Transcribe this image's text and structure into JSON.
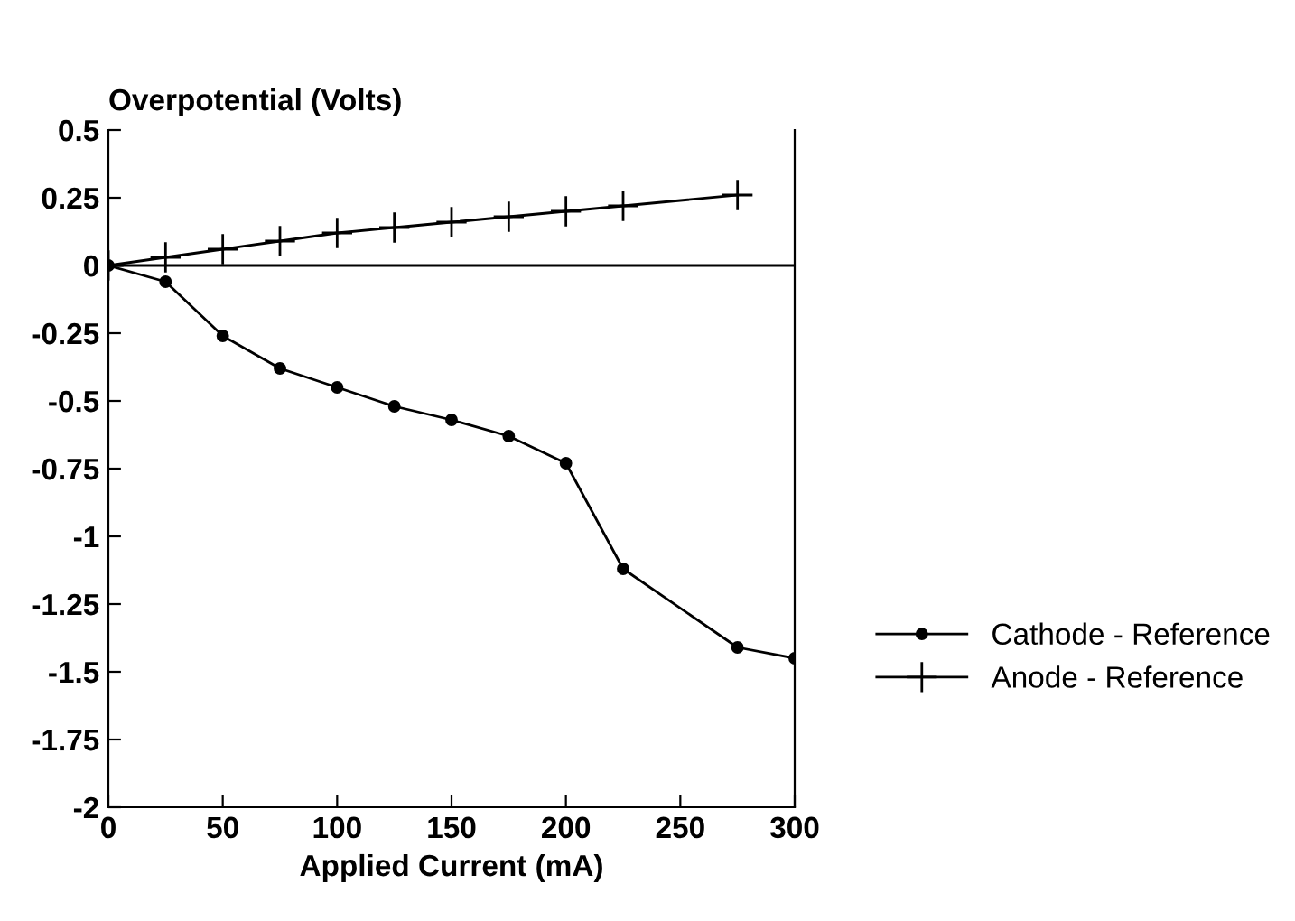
{
  "chart_data": {
    "type": "line",
    "xlabel": "Applied Current (mA)",
    "ylabel": "Overpotential (Volts)",
    "series": [
      {
        "name": "Cathode - Reference",
        "color": "#000000",
        "marker": "circle",
        "x": [
          0,
          25,
          50,
          75,
          100,
          125,
          150,
          175,
          200,
          225,
          275,
          300
        ],
        "values": [
          0,
          -0.06,
          -0.26,
          -0.38,
          -0.45,
          -0.52,
          -0.57,
          -0.63,
          -0.73,
          -1.12,
          -1.41,
          -1.45
        ]
      },
      {
        "name": "Anode - Reference",
        "color": "#000000",
        "marker": "cross",
        "x": [
          0,
          25,
          50,
          75,
          100,
          125,
          150,
          175,
          200,
          225,
          275
        ],
        "values": [
          0,
          0.03,
          0.06,
          0.09,
          0.12,
          0.14,
          0.16,
          0.18,
          0.2,
          0.22,
          0.26
        ]
      }
    ],
    "xlim": [
      0,
      300
    ],
    "xticks": [
      0,
      50,
      100,
      150,
      200,
      250,
      300
    ],
    "ylim": [
      -2,
      0.5
    ],
    "yticks": [
      {
        "value": 0.5,
        "label": "0.5"
      },
      {
        "value": 0.25,
        "label": "0.25"
      },
      {
        "value": 0,
        "label": "0"
      },
      {
        "value": -0.25,
        "label": "-0.25"
      },
      {
        "value": -0.5,
        "label": "-0.5"
      },
      {
        "value": -0.75,
        "label": "-0.75"
      },
      {
        "value": -1,
        "label": "-1"
      },
      {
        "value": -1.25,
        "label": "-1.25"
      },
      {
        "value": -1.5,
        "label": "-1.5"
      },
      {
        "value": -1.75,
        "label": "-1.75"
      },
      {
        "value": -2,
        "label": "-2"
      }
    ],
    "ref_lines": [
      {
        "axis": "y",
        "value": 0,
        "color": "#000000"
      }
    ],
    "legend": "right",
    "grid": false,
    "line_style": "solid"
  }
}
